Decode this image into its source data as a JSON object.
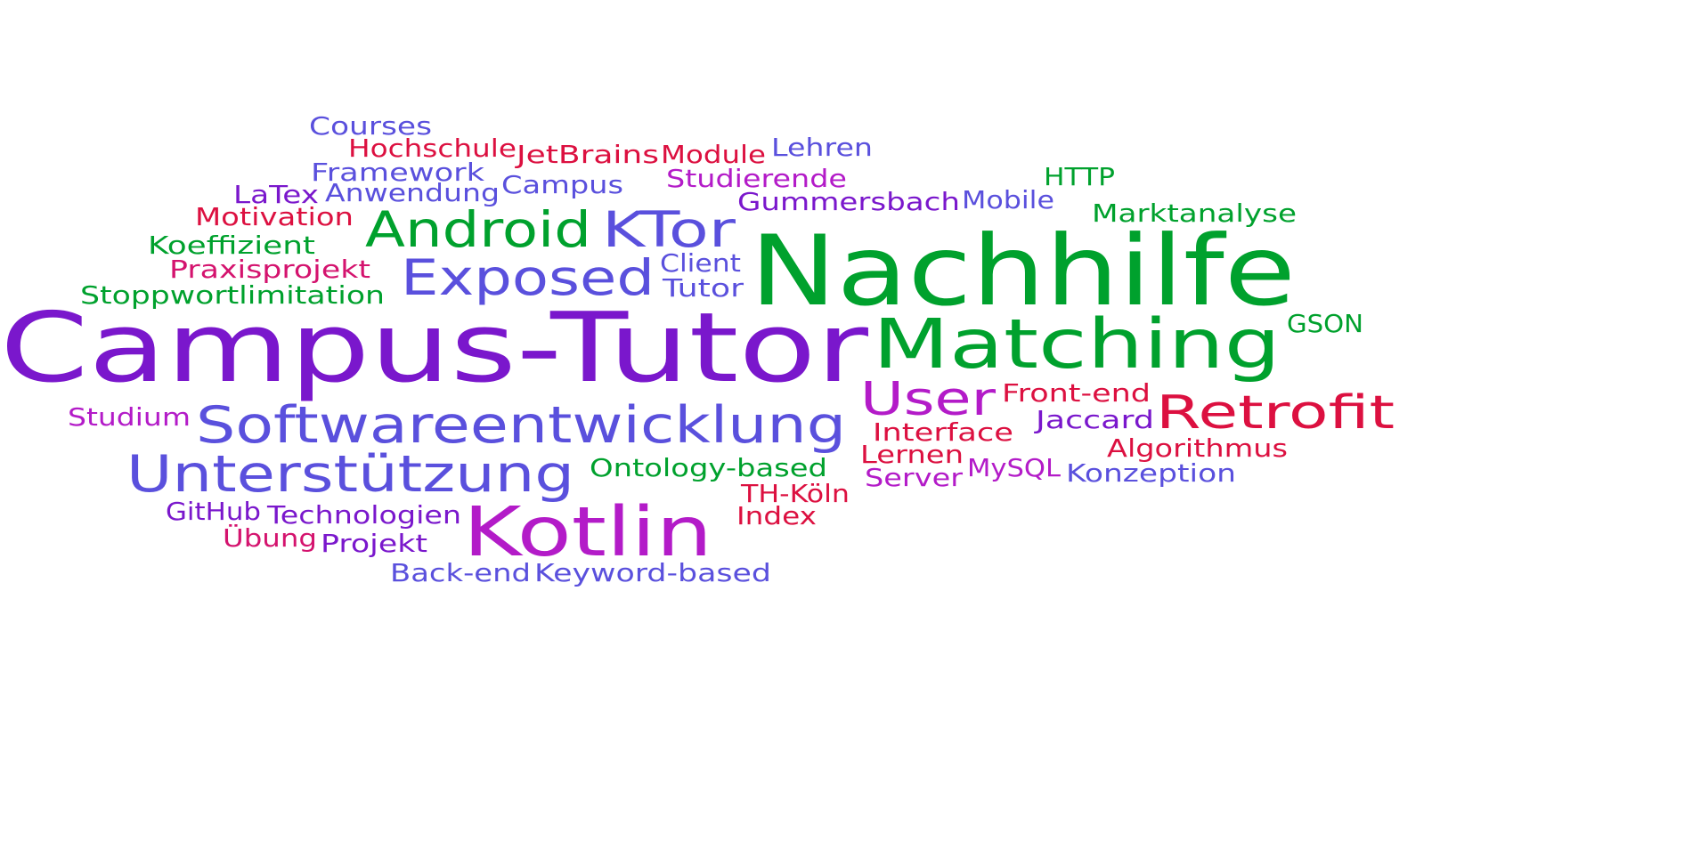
{
  "colors": {
    "green": "#00a12d",
    "purple": "#7a17cc",
    "blue": "#5a50dd",
    "red": "#dc1040",
    "magenta": "#b31bc8",
    "pink": "#d4136e"
  },
  "words": [
    {
      "text": "Campus-Tutor",
      "color": "purple"
    },
    {
      "text": "Nachhilfe",
      "color": "green"
    },
    {
      "text": "Matching",
      "color": "green"
    },
    {
      "text": "Kotlin",
      "color": "magenta"
    },
    {
      "text": "Softwareentwicklung",
      "color": "blue"
    },
    {
      "text": "Unterstützung",
      "color": "blue"
    },
    {
      "text": "Retrofit",
      "color": "red"
    },
    {
      "text": "Android",
      "color": "green"
    },
    {
      "text": "KTor",
      "color": "blue"
    },
    {
      "text": "Exposed",
      "color": "blue"
    },
    {
      "text": "User",
      "color": "magenta"
    },
    {
      "text": "Courses",
      "color": "blue"
    },
    {
      "text": "Hochschule",
      "color": "red"
    },
    {
      "text": "JetBrains",
      "color": "red"
    },
    {
      "text": "Module",
      "color": "red"
    },
    {
      "text": "Lehren",
      "color": "blue"
    },
    {
      "text": "Framework",
      "color": "blue"
    },
    {
      "text": "Studierende",
      "color": "magenta"
    },
    {
      "text": "HTTP",
      "color": "green"
    },
    {
      "text": "LaTex",
      "color": "purple"
    },
    {
      "text": "Anwendung",
      "color": "blue"
    },
    {
      "text": "Campus",
      "color": "blue"
    },
    {
      "text": "Gummersbach",
      "color": "purple"
    },
    {
      "text": "Mobile",
      "color": "blue"
    },
    {
      "text": "Motivation",
      "color": "red"
    },
    {
      "text": "Marktanalyse",
      "color": "green"
    },
    {
      "text": "Koeffizient",
      "color": "green"
    },
    {
      "text": "Praxisprojekt",
      "color": "pink"
    },
    {
      "text": "Client",
      "color": "blue"
    },
    {
      "text": "Tutor",
      "color": "blue"
    },
    {
      "text": "Stoppwortlimitation",
      "color": "green"
    },
    {
      "text": "GSON",
      "color": "green"
    },
    {
      "text": "Front-end",
      "color": "red"
    },
    {
      "text": "Studium",
      "color": "magenta"
    },
    {
      "text": "Jaccard",
      "color": "purple"
    },
    {
      "text": "Interface",
      "color": "red"
    },
    {
      "text": "Algorithmus",
      "color": "red"
    },
    {
      "text": "Lernen",
      "color": "red"
    },
    {
      "text": "Ontology-based",
      "color": "green"
    },
    {
      "text": "MySQL",
      "color": "magenta"
    },
    {
      "text": "Server",
      "color": "magenta"
    },
    {
      "text": "Konzeption",
      "color": "blue"
    },
    {
      "text": "TH-Köln",
      "color": "red"
    },
    {
      "text": "GitHub",
      "color": "purple"
    },
    {
      "text": "Technologien",
      "color": "purple"
    },
    {
      "text": "Index",
      "color": "red"
    },
    {
      "text": "Übung",
      "color": "pink"
    },
    {
      "text": "Projekt",
      "color": "purple"
    },
    {
      "text": "Back-end",
      "color": "blue"
    },
    {
      "text": "Keyword-based",
      "color": "blue"
    }
  ]
}
